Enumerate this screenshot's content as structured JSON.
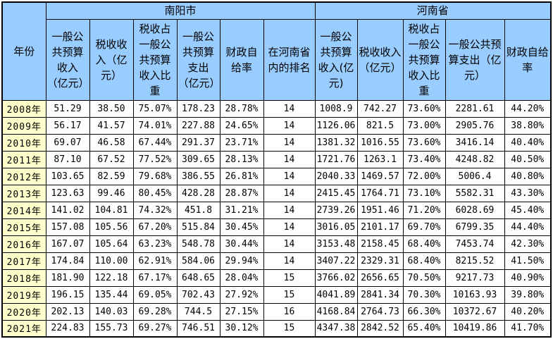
{
  "colors": {
    "header_bg": "#99CCFF",
    "year_col_bg": "#FFFFCC",
    "cell_bg": "#FFFFFF",
    "border": "#000000",
    "text": "#000000"
  },
  "chart_data": {
    "type": "table",
    "year_column_header": "年份",
    "groups": [
      {
        "label": "南阳市",
        "colspan": 6
      },
      {
        "label": "河南省",
        "colspan": 5
      }
    ],
    "columns": [
      "一般公共预算收入（亿元）",
      "税收收入（亿元）",
      "税收占一般公共预算收入比重",
      "一般公共预算支出（亿元）",
      "财政自给率",
      "在河南省内的排名",
      "一般公共预算收入(亿元)",
      "税收收入（亿元）",
      "税收占一般公共预算收入比重",
      "一般公共预算支出（亿元）",
      "财政自给率"
    ],
    "rows": [
      {
        "year": "2008年",
        "values": [
          "51.29",
          "38.50",
          "75.07%",
          "178.23",
          "28.78%",
          "14",
          "1008.9",
          "742.27",
          "73.60%",
          "2281.61",
          "44.20%"
        ]
      },
      {
        "year": "2009年",
        "values": [
          "56.17",
          "41.57",
          "74.01%",
          "227.88",
          "24.65%",
          "14",
          "1126.06",
          "821.5",
          "73.00%",
          "2905.76",
          "38.80%"
        ]
      },
      {
        "year": "2010年",
        "values": [
          "69.07",
          "46.58",
          "67.44%",
          "291.37",
          "23.71%",
          "14",
          "1381.32",
          "1016.55",
          "73.60%",
          "3416.14",
          "40.40%"
        ]
      },
      {
        "year": "2011年",
        "values": [
          "87.10",
          "67.52",
          "77.52%",
          "309.65",
          "28.13%",
          "14",
          "1721.76",
          "1263.1",
          "73.40%",
          "4248.82",
          "40.50%"
        ]
      },
      {
        "year": "2012年",
        "values": [
          "103.65",
          "82.59",
          "79.68%",
          "386.55",
          "26.81%",
          "14",
          "2040.33",
          "1469.57",
          "72.00%",
          "5006.4",
          "40.80%"
        ]
      },
      {
        "year": "2013年",
        "values": [
          "123.63",
          "99.46",
          "80.45%",
          "428.28",
          "28.87%",
          "14",
          "2415.45",
          "1764.71",
          "73.10%",
          "5582.31",
          "43.30%"
        ]
      },
      {
        "year": "2014年",
        "values": [
          "141.02",
          "104.81",
          "74.32%",
          "451.8",
          "31.21%",
          "14",
          "2739.26",
          "1951.46",
          "71.20%",
          "6028.69",
          "45.40%"
        ]
      },
      {
        "year": "2015年",
        "values": [
          "157.08",
          "105.56",
          "67.20%",
          "515.84",
          "30.45%",
          "14",
          "3016.05",
          "2101.17",
          "69.70%",
          "6799.35",
          "44.40%"
        ]
      },
      {
        "year": "2016年",
        "values": [
          "167.07",
          "105.64",
          "63.23%",
          "548.78",
          "30.44%",
          "14",
          "3153.48",
          "2158.45",
          "68.40%",
          "7453.74",
          "42.30%"
        ]
      },
      {
        "year": "2017年",
        "values": [
          "174.84",
          "110.00",
          "62.91%",
          "584.06",
          "29.94%",
          "14",
          "3407.22",
          "2329.31",
          "68.40%",
          "8215.52",
          "41.50%"
        ]
      },
      {
        "year": "2018年",
        "values": [
          "181.90",
          "122.18",
          "67.17%",
          "648.65",
          "28.04%",
          "15",
          "3766.02",
          "2656.65",
          "70.50%",
          "9217.73",
          "40.90%"
        ]
      },
      {
        "year": "2019年",
        "values": [
          "196.15",
          "135.44",
          "69.05%",
          "702.43",
          "27.92%",
          "15",
          "4041.89",
          "2841.34",
          "70.30%",
          "10163.93",
          "39.80%"
        ]
      },
      {
        "year": "2020年",
        "values": [
          "202.13",
          "140.03",
          "69.28%",
          "744.5",
          "27.15%",
          "16",
          "4168.84",
          "2764.73",
          "66.30%",
          "10372.67",
          "40.20%"
        ]
      },
      {
        "year": "2021年",
        "values": [
          "224.83",
          "155.73",
          "69.27%",
          "746.51",
          "30.12%",
          "15",
          "4347.38",
          "2842.52",
          "65.40%",
          "10419.86",
          "41.70%"
        ]
      }
    ]
  }
}
